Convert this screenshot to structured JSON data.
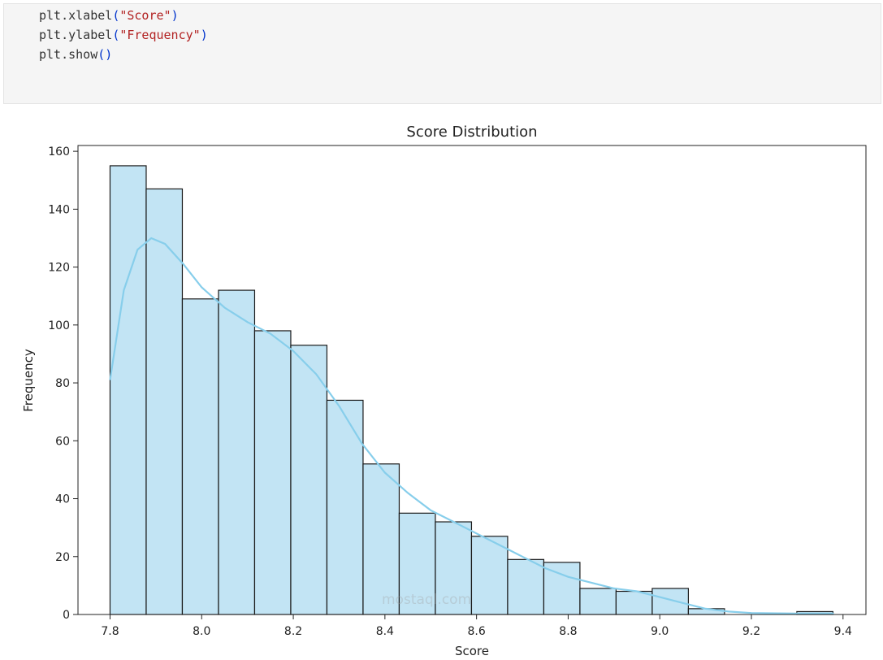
{
  "code": {
    "lines": [
      {
        "fn": "plt.xlabel",
        "open": "(",
        "arg": "\"Score\"",
        "close": ")"
      },
      {
        "fn": "plt.ylabel",
        "open": "(",
        "arg": "\"Frequency\"",
        "close": ")"
      },
      {
        "fn": "plt.show",
        "open": "()",
        "arg": "",
        "close": ""
      }
    ]
  },
  "chart_data": {
    "type": "bar",
    "title": "Score Distribution",
    "xlabel": "Score",
    "ylabel": "Frequency",
    "xlim": [
      7.73,
      9.45
    ],
    "ylim": [
      0,
      162
    ],
    "xticks": [
      "7.8",
      "8.0",
      "8.2",
      "8.4",
      "8.6",
      "8.8",
      "9.0",
      "9.2",
      "9.4"
    ],
    "yticks": [
      "0",
      "20",
      "40",
      "60",
      "80",
      "100",
      "120",
      "140",
      "160"
    ],
    "bin_start": 7.8,
    "bin_width": 0.0789,
    "values": [
      155,
      147,
      109,
      112,
      98,
      93,
      74,
      52,
      35,
      32,
      27,
      19,
      18,
      9,
      8,
      9,
      2,
      0,
      0,
      1
    ],
    "kde": {
      "x": [
        7.8,
        7.83,
        7.86,
        7.89,
        7.92,
        7.96,
        8.0,
        8.05,
        8.1,
        8.15,
        8.2,
        8.25,
        8.3,
        8.35,
        8.4,
        8.45,
        8.5,
        8.55,
        8.6,
        8.65,
        8.7,
        8.75,
        8.8,
        8.85,
        8.9,
        8.95,
        9.0,
        9.05,
        9.1,
        9.15,
        9.2,
        9.3,
        9.38
      ],
      "y": [
        81,
        112,
        126,
        130,
        128,
        121,
        113,
        106,
        101,
        97,
        91,
        83,
        72,
        59,
        49,
        42,
        36,
        32,
        28,
        24,
        20,
        16,
        13,
        11,
        9,
        8,
        6,
        4,
        2,
        1,
        0.5,
        0.3,
        0.3
      ]
    },
    "bar_color": "#c2e4f4",
    "edge_color": "#1a1a1a",
    "kde_color": "#87ceeb",
    "grid": false
  },
  "watermark": {
    "text": "mostaql.com"
  }
}
